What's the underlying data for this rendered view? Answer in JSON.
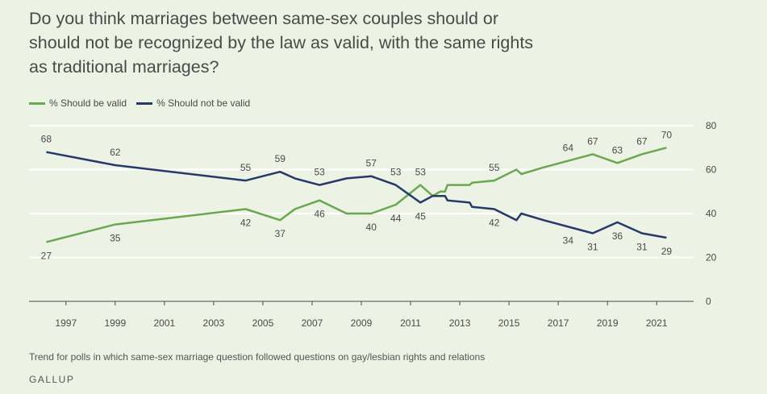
{
  "title": "Do you think marriages between same-sex couples should or\nshould not be recognized by the law as valid, with the same rights\nas traditional marriages?",
  "footnote": "Trend for polls in which same-sex marriage question followed questions on gay/lesbian rights and relations",
  "source": "GALLUP",
  "colors": {
    "valid": "#6aa84f",
    "not_valid": "#253a6b",
    "grid": "#ffffff",
    "axis": "#4a4a4a"
  },
  "chart_data": {
    "type": "line",
    "ylim": [
      0,
      80
    ],
    "yticks": [
      0,
      20,
      40,
      60,
      80
    ],
    "xlim": [
      1995.5,
      2022.5
    ],
    "xticks": [
      "1997",
      "1999",
      "2001",
      "2003",
      "2005",
      "2007",
      "2009",
      "2011",
      "2013",
      "2015",
      "2017",
      "2019",
      "2021"
    ],
    "grid": true,
    "legend": "top-left",
    "series": [
      {
        "name": "% Should be valid",
        "color": "#6aa84f",
        "points": [
          [
            1996.2,
            27
          ],
          [
            1999.0,
            35
          ],
          [
            2004.3,
            42
          ],
          [
            2005.7,
            37
          ],
          [
            2006.3,
            42
          ],
          [
            2007.3,
            46
          ],
          [
            2008.4,
            40
          ],
          [
            2009.4,
            40
          ],
          [
            2010.4,
            44
          ],
          [
            2011.4,
            53
          ],
          [
            2011.9,
            48
          ],
          [
            2012.2,
            50
          ],
          [
            2012.4,
            50
          ],
          [
            2012.5,
            53
          ],
          [
            2013.4,
            53
          ],
          [
            2013.5,
            54
          ],
          [
            2014.4,
            55
          ],
          [
            2015.3,
            60
          ],
          [
            2015.5,
            58
          ],
          [
            2016.4,
            61
          ],
          [
            2018.4,
            67
          ],
          [
            2019.4,
            63
          ],
          [
            2020.4,
            67
          ],
          [
            2021.4,
            70
          ]
        ],
        "labels": [
          {
            "x": 1996.2,
            "v": 27,
            "pos": "below"
          },
          {
            "x": 1999.0,
            "v": 35,
            "pos": "below"
          },
          {
            "x": 2004.3,
            "v": 42,
            "pos": "below"
          },
          {
            "x": 2005.7,
            "v": 37,
            "pos": "below"
          },
          {
            "x": 2007.3,
            "v": 46,
            "pos": "below"
          },
          {
            "x": 2009.4,
            "v": 40,
            "pos": "below"
          },
          {
            "x": 2010.4,
            "v": 44,
            "pos": "below"
          },
          {
            "x": 2011.4,
            "v": 53,
            "pos": "above"
          },
          {
            "x": 2014.4,
            "v": 55,
            "pos": "above"
          },
          {
            "x": 2017.4,
            "v": 64,
            "pos": "above"
          },
          {
            "x": 2018.4,
            "v": 67,
            "pos": "above"
          },
          {
            "x": 2019.4,
            "v": 63,
            "pos": "above"
          },
          {
            "x": 2020.4,
            "v": 67,
            "pos": "above"
          },
          {
            "x": 2021.4,
            "v": 70,
            "pos": "above"
          }
        ]
      },
      {
        "name": "% Should not be valid",
        "color": "#253a6b",
        "points": [
          [
            1996.2,
            68
          ],
          [
            1999.0,
            62
          ],
          [
            2004.3,
            55
          ],
          [
            2005.7,
            59
          ],
          [
            2006.3,
            56
          ],
          [
            2007.3,
            53
          ],
          [
            2008.4,
            56
          ],
          [
            2009.4,
            57
          ],
          [
            2010.4,
            53
          ],
          [
            2011.4,
            45
          ],
          [
            2011.9,
            48
          ],
          [
            2012.2,
            48
          ],
          [
            2012.4,
            48
          ],
          [
            2012.5,
            46
          ],
          [
            2013.4,
            45
          ],
          [
            2013.5,
            43
          ],
          [
            2014.4,
            42
          ],
          [
            2015.3,
            37
          ],
          [
            2015.5,
            40
          ],
          [
            2016.4,
            37
          ],
          [
            2018.4,
            31
          ],
          [
            2019.4,
            36
          ],
          [
            2020.4,
            31
          ],
          [
            2021.4,
            29
          ]
        ],
        "labels": [
          {
            "x": 1996.2,
            "v": 68,
            "pos": "above"
          },
          {
            "x": 1999.0,
            "v": 62,
            "pos": "above"
          },
          {
            "x": 2004.3,
            "v": 55,
            "pos": "above"
          },
          {
            "x": 2005.7,
            "v": 59,
            "pos": "above"
          },
          {
            "x": 2007.3,
            "v": 53,
            "pos": "above"
          },
          {
            "x": 2009.4,
            "v": 57,
            "pos": "above"
          },
          {
            "x": 2010.4,
            "v": 53,
            "pos": "above"
          },
          {
            "x": 2011.4,
            "v": 45,
            "pos": "below"
          },
          {
            "x": 2014.4,
            "v": 42,
            "pos": "below"
          },
          {
            "x": 2017.4,
            "v": 34,
            "pos": "below"
          },
          {
            "x": 2018.4,
            "v": 31,
            "pos": "below"
          },
          {
            "x": 2019.4,
            "v": 36,
            "pos": "below"
          },
          {
            "x": 2020.4,
            "v": 31,
            "pos": "below"
          },
          {
            "x": 2021.4,
            "v": 29,
            "pos": "below"
          }
        ]
      }
    ]
  }
}
